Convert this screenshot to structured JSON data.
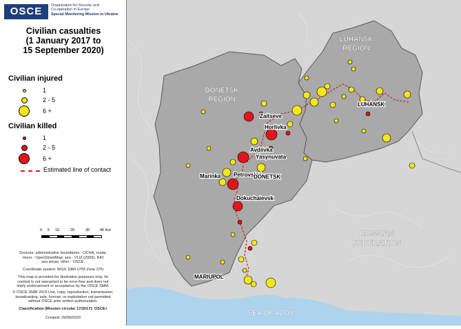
{
  "header": {
    "logo_text": "OSCE",
    "org_lines": [
      "Organization for Security and",
      "Co-operation in Europe",
      "Special Monitoring Mission to Ukraine"
    ]
  },
  "title": {
    "line1": "Civilian casualties",
    "line2": "(1 January 2017 to",
    "line3": "15 September 2020)"
  },
  "legend": {
    "injured_heading": "Civilian injured",
    "killed_heading": "Civilian killed",
    "classes": [
      "1",
      "2 - 5",
      "6 +"
    ],
    "contact_line_label": "Estimated line of contact",
    "injured_fill": "#f5e61a",
    "killed_fill": "#e0161b",
    "contact_line_color": "#d0201c"
  },
  "scale": {
    "ticks": [
      "0",
      "5",
      "10",
      "20",
      "30",
      "40 Km"
    ]
  },
  "notes": {
    "sources": [
      "Sources: administrative boundaries - OCHA; roads,",
      "rivers - OpenStreetMap; sea - VLIZ (2005); IHO",
      "sea areas; other - OSCE."
    ],
    "crs": "Coordinate system: WGS 1984 UTM Zone 37N",
    "disclaimer": [
      "This map is provided for illustrative purposes only. Its",
      "content is not warranted to be error-free and does not",
      "imply endorsement or acceptance by the OSCE SMM."
    ],
    "copyright": [
      "© OSCE SMM 2019 Use, copy, reproduction, transmission,",
      "broadcasting, sale, license, or exploitation not permitted",
      "without OSCE prior written authorization."
    ],
    "classification": "Classification (Mission circular 17/2017): OSCE+",
    "created": "Created: 29/09/2020"
  },
  "map": {
    "region_labels": [
      "DONETSK",
      "REGION",
      "LUHANSK",
      "REGION"
    ],
    "country_labels": [
      "RUSSIAN",
      "FEDERATION"
    ],
    "sea_label": "SEA OF AZOV",
    "city_labels": [
      "Zaitseve",
      "Horlivka",
      "Avdiivka",
      "Yasynuvata",
      "Marinka",
      "Petrovskyi",
      "DONETSK",
      "Dokuchaievsk",
      "MARIUPOL",
      "LUHANSK"
    ],
    "colors": {
      "land": "#d6d6d6",
      "oblast": "#a9a9a9",
      "sea": "#aed3ec",
      "boundary": "#5a5a5a"
    }
  }
}
